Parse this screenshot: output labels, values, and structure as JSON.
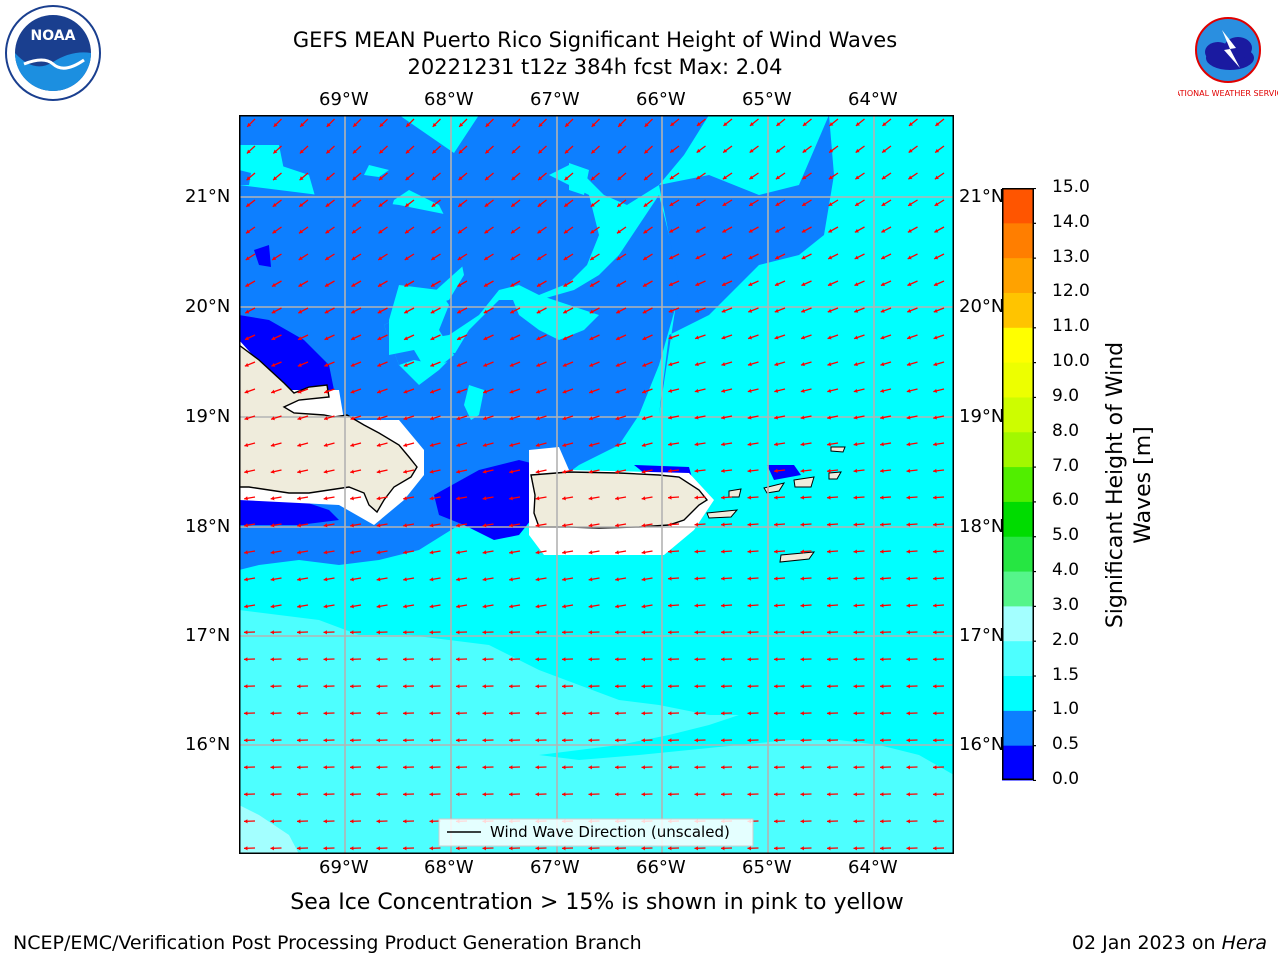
{
  "header": {
    "title": "GEFS MEAN Puerto Rico Significant Height of Wind Waves",
    "subtitle": "20221231 t12z 384h fcst   Max: 2.04"
  },
  "map": {
    "lon_labels": [
      "69°W",
      "68°W",
      "67°W",
      "66°W",
      "65°W",
      "64°W"
    ],
    "lat_labels": [
      "21°N",
      "20°N",
      "19°N",
      "18°N",
      "17°N",
      "16°N"
    ],
    "legend_label": "Wind Wave Direction (unscaled)",
    "land_color": "#efecdc",
    "arrow_color": "#ff0000"
  },
  "colorbar": {
    "label": "Significant Height of Wind Waves [m]",
    "ticks": [
      "15.0",
      "14.0",
      "13.0",
      "12.0",
      "11.0",
      "10.0",
      "9.0",
      "8.0",
      "7.0",
      "6.0",
      "5.0",
      "4.0",
      "3.0",
      "2.0",
      "1.5",
      "1.0",
      "0.5",
      "0.0"
    ],
    "colors": [
      "#0000ff",
      "#0d7fff",
      "#00ffff",
      "#4dffff",
      "#a3ffff",
      "#55f58a",
      "#26e642",
      "#00dc00",
      "#51ee00",
      "#a2f800",
      "#cdfd00",
      "#edff00",
      "#ffff00",
      "#ffc400",
      "#ffa200",
      "#ff7e00",
      "#ff5500",
      "#ff2a00",
      "#ff0000"
    ]
  },
  "caption": "Sea Ice Concentration > 15% is shown in pink to yellow",
  "footer": {
    "left": "NCEP/EMC/Verification Post Processing Product Generation Branch",
    "date": "02 Jan 2023 on ",
    "machine": "Hera"
  },
  "logos": {
    "noaa": "NOAA",
    "nws": "NATIONAL WEATHER SERVICE"
  }
}
